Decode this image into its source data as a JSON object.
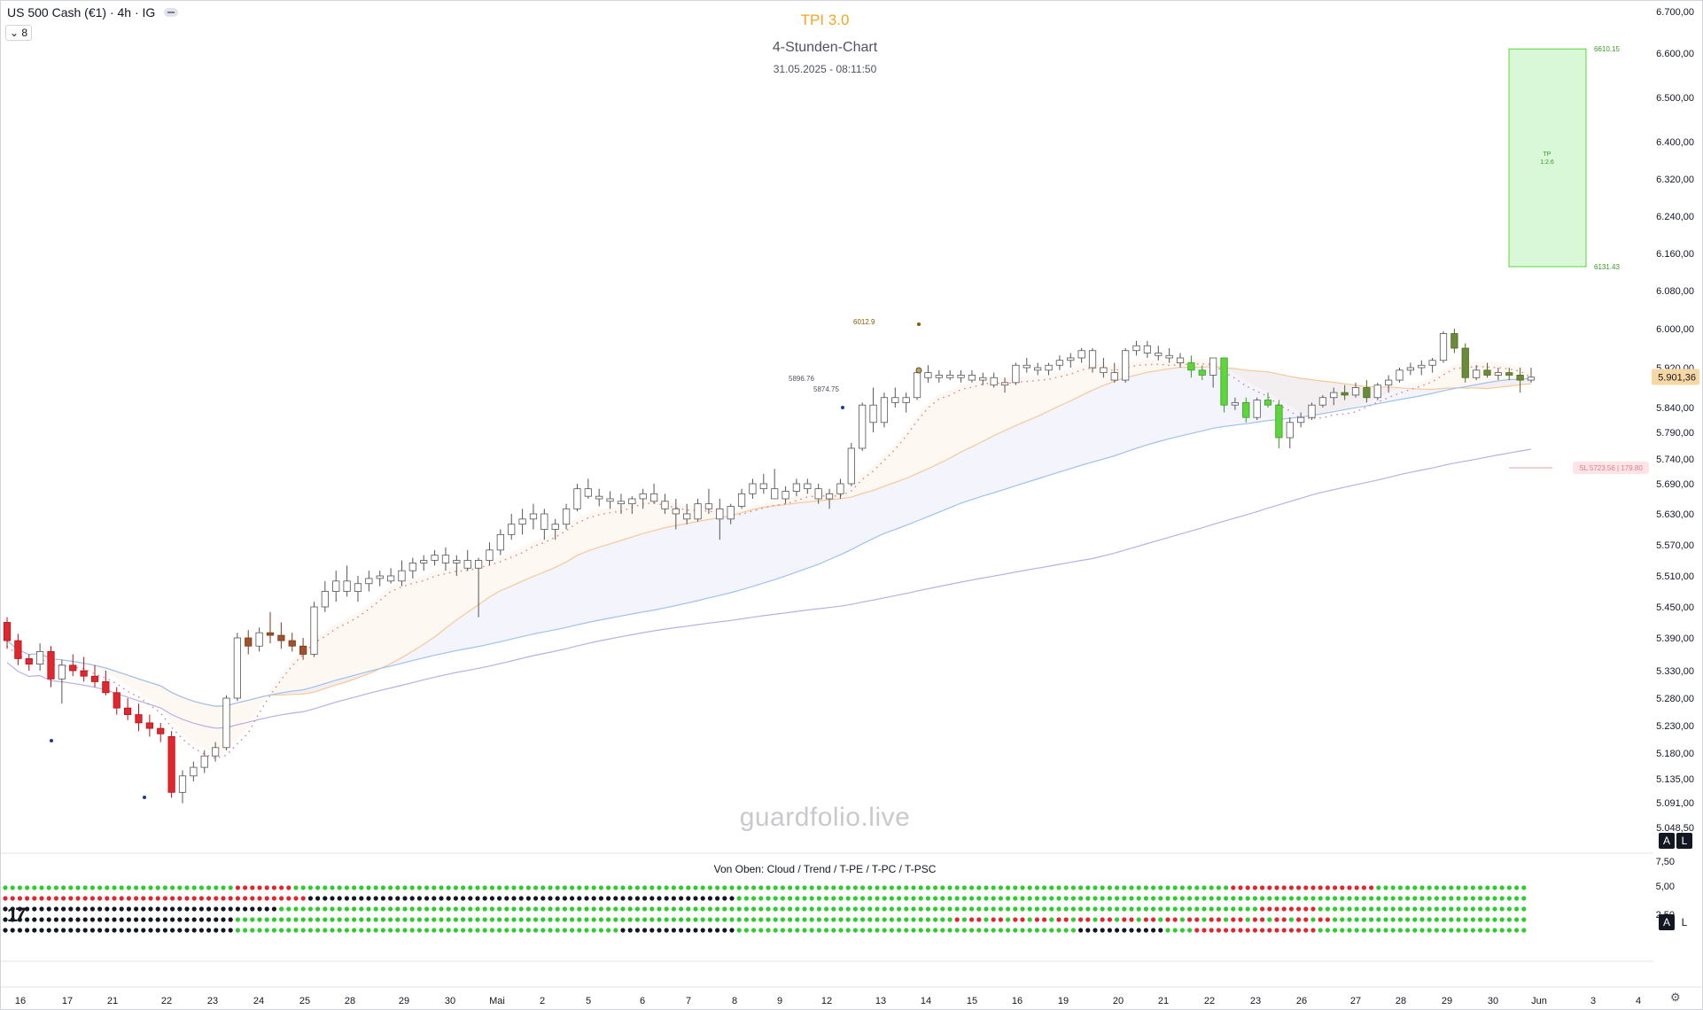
{
  "header": {
    "symbol": "US 500 Cash (€1) · 4h · IG",
    "layout_count": "8",
    "title": "TPI 3.0",
    "subtitle": "4-Stunden-Chart",
    "timestamp": "31.05.2025 - 08:11:50"
  },
  "watermark": "guardfolio.live",
  "indicator": {
    "label": "Von Oben: Cloud / Trend / T-PE / T-PC / T-PSC",
    "scale": [
      "7,50",
      "5,00",
      "2,50"
    ]
  },
  "buttons": {
    "auto": "A",
    "log": "L"
  },
  "colors": {
    "bull": "#5cd63b",
    "bear": "#e1262d",
    "neutral": "#ffffff",
    "accent": "#f5a623",
    "tp_zone": "#c8f5c8"
  },
  "chart_data": {
    "type": "candlestick",
    "title": "TPI 3.0",
    "xlabel": "",
    "ylabel": "",
    "ylim": [
      5048.5,
      6700
    ],
    "y_ticks": [
      "6.700,00",
      "6.600,00",
      "6.500,00",
      "6.400,00",
      "6.320,00",
      "6.240,00",
      "6.160,00",
      "6.080,00",
      "6.000,00",
      "5.920,00",
      "5.840,00",
      "5.790,00",
      "5.740,00",
      "5.690,00",
      "5.630,00",
      "5.570,00",
      "5.510,00",
      "5.450,00",
      "5.390,00",
      "5.330,00",
      "5.280,00",
      "5.230,00",
      "5.180,00",
      "5.135,00",
      "5.091,00",
      "5.048,50"
    ],
    "y_tick_values": [
      6700,
      6600,
      6500,
      6400,
      6320,
      6240,
      6160,
      6080,
      6000,
      5920,
      5840,
      5790,
      5740,
      5690,
      5630,
      5570,
      5510,
      5450,
      5390,
      5330,
      5280,
      5230,
      5180,
      5135,
      5091,
      5048.5
    ],
    "x_ticks": [
      "16",
      "17",
      "21",
      "22",
      "23",
      "24",
      "25",
      "28",
      "29",
      "30",
      "Mai",
      "2",
      "5",
      "6",
      "7",
      "8",
      "9",
      "12",
      "13",
      "14",
      "15",
      "16",
      "19",
      "20",
      "21",
      "22",
      "23",
      "26",
      "27",
      "28",
      "29",
      "30",
      "Jun",
      "3",
      "4"
    ],
    "last_price": "5.901,36",
    "last_price_value": 5901.36,
    "take_profit": {
      "label": "TP\n1:2.6",
      "upper": "6610.15",
      "lower": "6131.43",
      "upper_value": 6610.15,
      "lower_value": 6131.43
    },
    "stop_loss": {
      "label": "SL 5723.56 | 179.80",
      "value": 5723.56
    },
    "annotations": [
      {
        "text": "6012.9",
        "value": 6012.9
      },
      {
        "text": "5896.76",
        "value": 5896.76
      },
      {
        "text": "5874.75",
        "value": 5874.75
      }
    ],
    "candles_ohlc": [
      [
        5420,
        5430,
        5370,
        5385
      ],
      [
        5385,
        5398,
        5340,
        5352
      ],
      [
        5352,
        5360,
        5330,
        5342
      ],
      [
        5342,
        5380,
        5330,
        5365
      ],
      [
        5365,
        5375,
        5300,
        5315
      ],
      [
        5315,
        5350,
        5270,
        5340
      ],
      [
        5340,
        5360,
        5320,
        5330
      ],
      [
        5330,
        5355,
        5310,
        5320
      ],
      [
        5320,
        5340,
        5300,
        5310
      ],
      [
        5310,
        5330,
        5285,
        5290
      ],
      [
        5290,
        5300,
        5250,
        5262
      ],
      [
        5262,
        5280,
        5240,
        5250
      ],
      [
        5250,
        5270,
        5220,
        5235
      ],
      [
        5235,
        5250,
        5210,
        5225
      ],
      [
        5225,
        5235,
        5200,
        5215
      ],
      [
        5210,
        5220,
        5100,
        5110
      ],
      [
        5110,
        5150,
        5090,
        5140
      ],
      [
        5140,
        5165,
        5130,
        5155
      ],
      [
        5155,
        5185,
        5145,
        5175
      ],
      [
        5175,
        5200,
        5165,
        5190
      ],
      [
        5190,
        5285,
        5185,
        5280
      ],
      [
        5280,
        5400,
        5275,
        5390
      ],
      [
        5390,
        5405,
        5360,
        5375
      ],
      [
        5375,
        5410,
        5365,
        5400
      ],
      [
        5400,
        5440,
        5380,
        5395
      ],
      [
        5395,
        5420,
        5370,
        5385
      ],
      [
        5385,
        5400,
        5365,
        5375
      ],
      [
        5375,
        5390,
        5350,
        5360
      ],
      [
        5360,
        5460,
        5355,
        5450
      ],
      [
        5450,
        5500,
        5440,
        5480
      ],
      [
        5480,
        5520,
        5460,
        5500
      ],
      [
        5500,
        5530,
        5470,
        5480
      ],
      [
        5480,
        5510,
        5460,
        5495
      ],
      [
        5495,
        5520,
        5480,
        5505
      ],
      [
        5505,
        5520,
        5490,
        5510
      ],
      [
        5510,
        5525,
        5495,
        5500
      ],
      [
        5500,
        5540,
        5490,
        5520
      ],
      [
        5520,
        5545,
        5505,
        5535
      ],
      [
        5535,
        5550,
        5520,
        5540
      ],
      [
        5540,
        5560,
        5530,
        5550
      ],
      [
        5550,
        5565,
        5520,
        5535
      ],
      [
        5535,
        5550,
        5510,
        5540
      ],
      [
        5540,
        5560,
        5520,
        5525
      ],
      [
        5525,
        5545,
        5430,
        5540
      ],
      [
        5540,
        5575,
        5530,
        5560
      ],
      [
        5560,
        5600,
        5550,
        5590
      ],
      [
        5590,
        5630,
        5580,
        5610
      ],
      [
        5610,
        5640,
        5590,
        5620
      ],
      [
        5620,
        5650,
        5600,
        5630
      ],
      [
        5630,
        5640,
        5580,
        5600
      ],
      [
        5600,
        5620,
        5580,
        5610
      ],
      [
        5610,
        5650,
        5600,
        5640
      ],
      [
        5640,
        5690,
        5635,
        5680
      ],
      [
        5680,
        5700,
        5660,
        5665
      ],
      [
        5665,
        5680,
        5645,
        5660
      ],
      [
        5660,
        5675,
        5640,
        5655
      ],
      [
        5655,
        5670,
        5630,
        5650
      ],
      [
        5650,
        5665,
        5630,
        5660
      ],
      [
        5660,
        5680,
        5640,
        5670
      ],
      [
        5670,
        5690,
        5650,
        5655
      ],
      [
        5655,
        5670,
        5630,
        5640
      ],
      [
        5640,
        5660,
        5600,
        5630
      ],
      [
        5630,
        5650,
        5610,
        5620
      ],
      [
        5620,
        5660,
        5615,
        5650
      ],
      [
        5650,
        5680,
        5630,
        5640
      ],
      [
        5640,
        5660,
        5580,
        5620
      ],
      [
        5620,
        5650,
        5610,
        5645
      ],
      [
        5645,
        5680,
        5640,
        5670
      ],
      [
        5670,
        5700,
        5660,
        5690
      ],
      [
        5690,
        5710,
        5670,
        5680
      ],
      [
        5680,
        5720,
        5660,
        5660
      ],
      [
        5660,
        5685,
        5650,
        5675
      ],
      [
        5675,
        5700,
        5665,
        5690
      ],
      [
        5690,
        5700,
        5670,
        5680
      ],
      [
        5680,
        5690,
        5650,
        5660
      ],
      [
        5660,
        5680,
        5640,
        5670
      ],
      [
        5670,
        5700,
        5660,
        5690
      ],
      [
        5690,
        5770,
        5685,
        5760
      ],
      [
        5760,
        5850,
        5755,
        5845
      ],
      [
        5845,
        5880,
        5790,
        5810
      ],
      [
        5810,
        5870,
        5800,
        5860
      ],
      [
        5860,
        5880,
        5840,
        5850
      ],
      [
        5850,
        5870,
        5830,
        5860
      ],
      [
        5860,
        5920,
        5855,
        5910
      ],
      [
        5910,
        5925,
        5890,
        5900
      ],
      [
        5900,
        5915,
        5890,
        5905
      ],
      [
        5905,
        5915,
        5895,
        5900
      ],
      [
        5900,
        5915,
        5890,
        5905
      ],
      [
        5905,
        5915,
        5890,
        5895
      ],
      [
        5895,
        5910,
        5885,
        5900
      ],
      [
        5900,
        5910,
        5880,
        5885
      ],
      [
        5885,
        5900,
        5870,
        5890
      ],
      [
        5890,
        5930,
        5885,
        5925
      ],
      [
        5925,
        5940,
        5910,
        5920
      ],
      [
        5920,
        5930,
        5905,
        5915
      ],
      [
        5915,
        5930,
        5905,
        5925
      ],
      [
        5925,
        5945,
        5915,
        5935
      ],
      [
        5935,
        5950,
        5920,
        5940
      ],
      [
        5940,
        5960,
        5930,
        5955
      ],
      [
        5955,
        5960,
        5910,
        5920
      ],
      [
        5920,
        5940,
        5900,
        5910
      ],
      [
        5910,
        5930,
        5890,
        5895
      ],
      [
        5895,
        5960,
        5890,
        5955
      ],
      [
        5955,
        5975,
        5945,
        5965
      ],
      [
        5965,
        5975,
        5940,
        5950
      ],
      [
        5950,
        5965,
        5935,
        5945
      ],
      [
        5945,
        5960,
        5930,
        5940
      ],
      [
        5940,
        5950,
        5920,
        5930
      ],
      [
        5930,
        5945,
        5900,
        5915
      ],
      [
        5915,
        5925,
        5895,
        5905
      ],
      [
        5905,
        5940,
        5880,
        5940
      ],
      [
        5940,
        5940,
        5830,
        5845
      ],
      [
        5845,
        5860,
        5835,
        5850
      ],
      [
        5850,
        5860,
        5810,
        5820
      ],
      [
        5820,
        5860,
        5815,
        5855
      ],
      [
        5855,
        5870,
        5840,
        5845
      ],
      [
        5845,
        5855,
        5760,
        5780
      ],
      [
        5780,
        5820,
        5760,
        5810
      ],
      [
        5810,
        5830,
        5800,
        5820
      ],
      [
        5820,
        5850,
        5815,
        5845
      ],
      [
        5845,
        5865,
        5840,
        5860
      ],
      [
        5860,
        5880,
        5845,
        5870
      ],
      [
        5870,
        5885,
        5855,
        5865
      ],
      [
        5865,
        5890,
        5860,
        5880
      ],
      [
        5880,
        5895,
        5850,
        5860
      ],
      [
        5860,
        5890,
        5855,
        5885
      ],
      [
        5885,
        5905,
        5870,
        5895
      ],
      [
        5895,
        5920,
        5890,
        5915
      ],
      [
        5915,
        5930,
        5905,
        5920
      ],
      [
        5920,
        5935,
        5905,
        5925
      ],
      [
        5925,
        5940,
        5910,
        5935
      ],
      [
        5935,
        5995,
        5930,
        5990
      ],
      [
        5990,
        6000,
        5950,
        5960
      ],
      [
        5960,
        5970,
        5890,
        5900
      ],
      [
        5900,
        5925,
        5895,
        5915
      ],
      [
        5915,
        5930,
        5900,
        5905
      ],
      [
        5905,
        5920,
        5895,
        5910
      ],
      [
        5910,
        5920,
        5895,
        5905
      ],
      [
        5905,
        5920,
        5870,
        5895
      ],
      [
        5895,
        5920,
        5890,
        5901
      ]
    ]
  }
}
